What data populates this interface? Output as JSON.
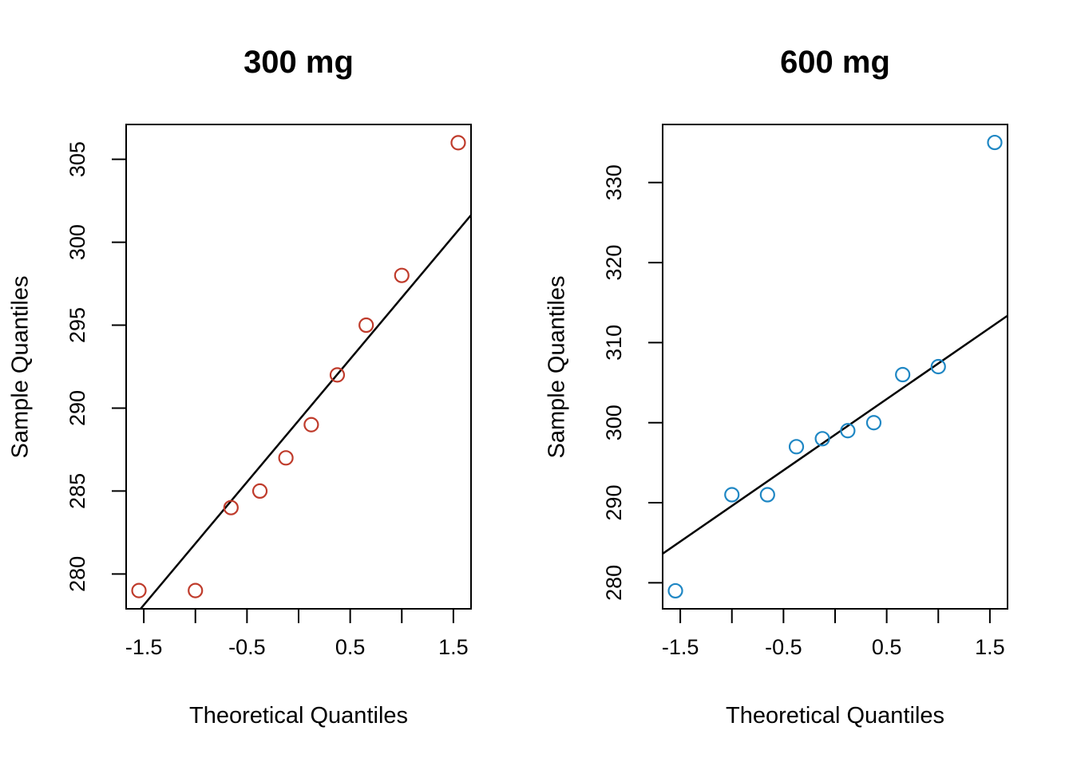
{
  "page": {
    "background": "#FFFFFF",
    "figure_type": "normal Q-Q plots, side by side"
  },
  "chart_data": [
    {
      "type": "scatter",
      "title": "300 mg",
      "xlabel": "Theoretical Quantiles",
      "ylabel": "Sample Quantiles",
      "x": [
        -1.547,
        -1.0,
        -0.655,
        -0.375,
        -0.123,
        0.123,
        0.375,
        0.655,
        1.0,
        1.547
      ],
      "y": [
        279,
        279,
        284,
        285,
        287,
        289,
        292,
        295,
        298,
        306
      ],
      "xlim": [
        -1.671,
        1.671
      ],
      "ylim": [
        277.9,
        307.1
      ],
      "xticks": [
        -1.5,
        -1.0,
        -0.5,
        0,
        0.5,
        1.0,
        1.5
      ],
      "xtick_labels": [
        "-1.5",
        "",
        "-0.5",
        "",
        "0.5",
        "",
        "1.5"
      ],
      "yticks": [
        280,
        285,
        290,
        295,
        300,
        305
      ],
      "ytick_labels": [
        "280",
        "285",
        "290",
        "295",
        "300",
        "305"
      ],
      "grid": false,
      "legend": null,
      "point_color": "#BF3B2B",
      "point_style": "open-circle",
      "line": {
        "slope": 7.413,
        "intercept": 289.25,
        "color": "#000000",
        "role": "qq-reference-line"
      }
    },
    {
      "type": "scatter",
      "title": "600 mg",
      "xlabel": "Theoretical Quantiles",
      "ylabel": "Sample Quantiles",
      "x": [
        -1.547,
        -1.0,
        -0.655,
        -0.375,
        -0.123,
        0.123,
        0.375,
        0.655,
        1.0,
        1.547
      ],
      "y": [
        279,
        291,
        291,
        297,
        298,
        299,
        300,
        306,
        307,
        335
      ],
      "xlim": [
        -1.671,
        1.671
      ],
      "ylim": [
        276.75,
        337.25
      ],
      "xticks": [
        -1.5,
        -1.0,
        -0.5,
        0,
        0.5,
        1.0,
        1.5
      ],
      "xtick_labels": [
        "-1.5",
        "",
        "-0.5",
        "",
        "0.5",
        "",
        "1.5"
      ],
      "yticks": [
        280,
        290,
        300,
        310,
        320,
        330
      ],
      "ytick_labels": [
        "280",
        "290",
        "300",
        "310",
        "320",
        "330"
      ],
      "grid": false,
      "legend": null,
      "point_color": "#1F87C4",
      "point_style": "open-circle",
      "line": {
        "slope": 8.896,
        "intercept": 298.5,
        "color": "#000000",
        "role": "qq-reference-line"
      }
    }
  ]
}
